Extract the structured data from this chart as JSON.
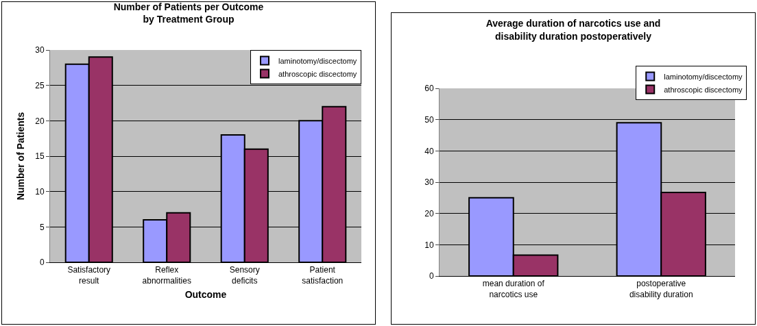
{
  "chart_data": [
    {
      "type": "bar",
      "title": "Number of Patients per Outcome\nby Treatment Group",
      "xlabel": "Outcome",
      "ylabel": "Number of Patients",
      "categories": [
        "Satisfactory\nresult",
        "Reflex\nabnormalities",
        "Sensory\ndeficits",
        "Patient\nsatisfaction"
      ],
      "series": [
        {
          "name": "laminotomy/discectomy",
          "color": "#9999ff",
          "values": [
            28,
            6,
            18,
            20
          ]
        },
        {
          "name": "athroscopic discectomy",
          "color": "#993366",
          "values": [
            29,
            7,
            16,
            22
          ]
        }
      ],
      "ylim": [
        0,
        30
      ],
      "yticks": [
        0,
        5,
        10,
        15,
        20,
        25,
        30
      ],
      "grid": "y",
      "legend": "top right"
    },
    {
      "type": "bar",
      "title": "Average duration of narcotics use and\ndisability duration postoperatively",
      "categories": [
        "mean duration of\nnarcotics use",
        "postoperative\ndisability duration"
      ],
      "series": [
        {
          "name": "laminotomy/discectomy",
          "color": "#9999ff",
          "values": [
            25,
            49
          ]
        },
        {
          "name": "athroscopic discectomy",
          "color": "#993366",
          "values": [
            6.7,
            26.7
          ]
        }
      ],
      "ylim": [
        0,
        60
      ],
      "yticks": [
        0,
        10,
        20,
        30,
        40,
        50,
        60
      ],
      "grid": "y",
      "legend": "top right"
    }
  ]
}
